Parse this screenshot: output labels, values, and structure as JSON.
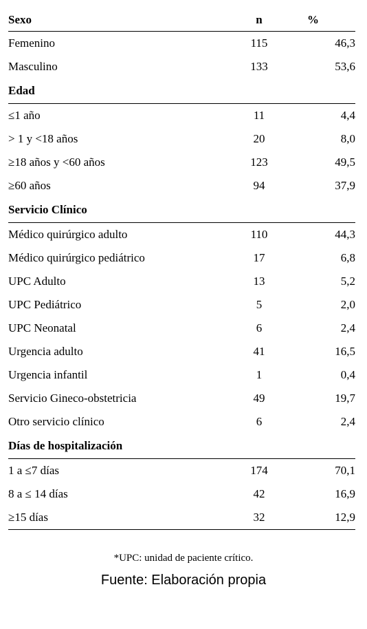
{
  "table": {
    "header": [
      "Sexo",
      "n",
      "%"
    ],
    "groups": [
      {
        "rows": [
          [
            "Femenino",
            "115",
            "46,3"
          ],
          [
            "Masculino",
            "133",
            "53,6"
          ]
        ]
      },
      {
        "title": "Edad",
        "rows": [
          [
            "≤1 año",
            "11",
            "4,4"
          ],
          [
            "> 1 y <18 años",
            "20",
            "8,0"
          ],
          [
            "≥18 años y <60 años",
            "123",
            "49,5"
          ],
          [
            "≥60 años",
            "94",
            "37,9"
          ]
        ]
      },
      {
        "title": "Servicio Clínico",
        "rows": [
          [
            "Médico quirúrgico adulto",
            "110",
            "44,3"
          ],
          [
            "Médico quirúrgico pediátrico",
            "17",
            "6,8"
          ],
          [
            "UPC Adulto",
            "13",
            "5,2"
          ],
          [
            "UPC Pediátrico",
            "5",
            "2,0"
          ],
          [
            "UPC Neonatal",
            "6",
            "2,4"
          ],
          [
            "Urgencia adulto",
            "41",
            "16,5"
          ],
          [
            "Urgencia infantil",
            "1",
            "0,4"
          ],
          [
            "Servicio Gineco-obstetricia",
            "49",
            "19,7"
          ],
          [
            "Otro servicio clínico",
            "6",
            "2,4"
          ]
        ]
      },
      {
        "title": "Días de hospitalización",
        "rows": [
          [
            "1 a ≤7 días",
            "174",
            "70,1"
          ],
          [
            "8 a ≤ 14 días",
            "42",
            "16,9"
          ],
          [
            "≥15 días",
            "32",
            "12,9"
          ]
        ]
      }
    ]
  },
  "footnote": "*UPC: unidad de paciente crítico.",
  "source": "Fuente: Elaboración propia"
}
